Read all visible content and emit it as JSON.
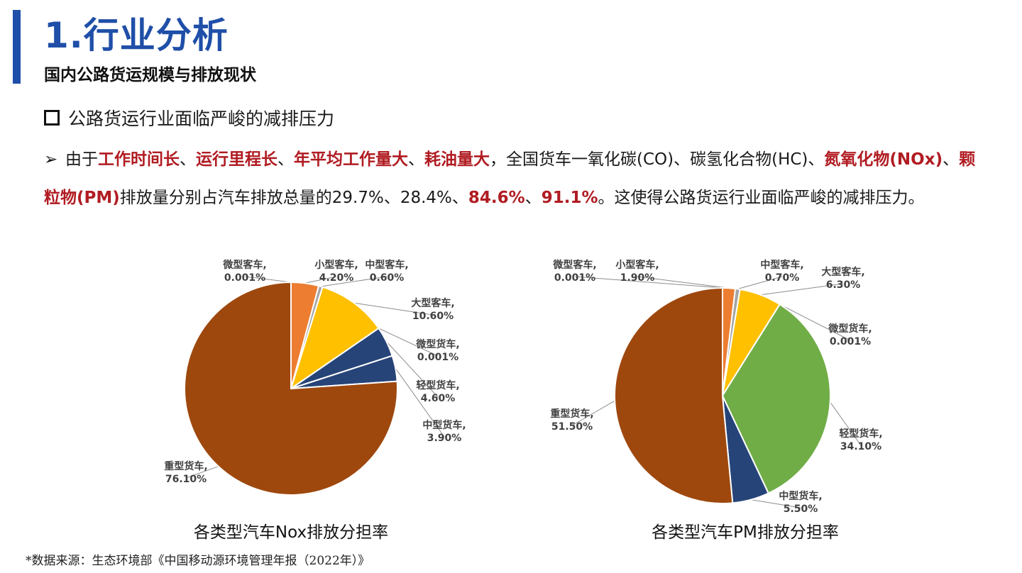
{
  "header": {
    "title": "1.行业分析",
    "subtitle": "国内公路货运规模与排放现状"
  },
  "heading": "公路货运行业面临严峻的减排压力",
  "paragraph": {
    "arrow": "➢",
    "segments": [
      {
        "text": "由于",
        "style": "normal"
      },
      {
        "text": "工作时间长",
        "style": "red"
      },
      {
        "text": "、",
        "style": "normal"
      },
      {
        "text": "运行里程长",
        "style": "red"
      },
      {
        "text": "、",
        "style": "normal"
      },
      {
        "text": "年平均工作量大",
        "style": "red"
      },
      {
        "text": "、",
        "style": "normal"
      },
      {
        "text": "耗油量大",
        "style": "red"
      },
      {
        "text": "，全国货车一氧化碳(CO)、碳氢化合物(HC)、",
        "style": "normal"
      },
      {
        "text": "氮氧化物(NOx)",
        "style": "red"
      },
      {
        "text": "、",
        "style": "normal"
      },
      {
        "text": "颗粒物(PM)",
        "style": "red"
      },
      {
        "text": "排放量分别占汽车排放总量的29.7%、28.4%、",
        "style": "normal"
      },
      {
        "text": "84.6%",
        "style": "red"
      },
      {
        "text": "、",
        "style": "normal"
      },
      {
        "text": "91.1%",
        "style": "red"
      },
      {
        "text": "。这使得公路货运行业面临严峻的减排压力。",
        "style": "normal"
      }
    ]
  },
  "colors": {
    "title_blue": "#1f4fa8",
    "highlight_red": "#b01c22"
  },
  "chart_data": [
    {
      "type": "pie",
      "title": "各类型汽车Nox排放分担率",
      "categories": [
        "微型客车",
        "小型客车",
        "中型客车",
        "大型客车",
        "微型货车",
        "轻型货车",
        "中型货车",
        "重型货车"
      ],
      "values": [
        0.001,
        4.2,
        0.6,
        10.6,
        0.001,
        4.6,
        3.9,
        76.1
      ],
      "labels": [
        "0.001%",
        "4.20%",
        "0.60%",
        "10.60%",
        "0.001%",
        "4.60%",
        "3.90%",
        "76.10%"
      ],
      "colors": [
        "#4472c4",
        "#ed7d31",
        "#a5a5a5",
        "#ffc000",
        "#70ad47",
        "#264478",
        "#264478",
        "#9e480e"
      ],
      "start": "12 o'clock, clockwise"
    },
    {
      "type": "pie",
      "title": "各类型汽车PM排放分担率",
      "categories": [
        "微型客车",
        "小型客车",
        "中型客车",
        "大型客车",
        "微型货车",
        "轻型货车",
        "中型货车",
        "重型货车"
      ],
      "values": [
        0.001,
        1.9,
        0.7,
        6.3,
        0.001,
        34.1,
        5.5,
        51.5
      ],
      "labels": [
        "0.001%",
        "1.90%",
        "0.70%",
        "6.30%",
        "0.001%",
        "34.10%",
        "5.50%",
        "51.50%"
      ],
      "colors": [
        "#4472c4",
        "#ed7d31",
        "#a5a5a5",
        "#ffc000",
        "#70ad47",
        "#70ad47",
        "#264478",
        "#9e480e"
      ],
      "start": "12 o'clock, clockwise"
    }
  ],
  "source": "*数据来源：生态环境部《中国移动源环境管理年报（2022年）》"
}
